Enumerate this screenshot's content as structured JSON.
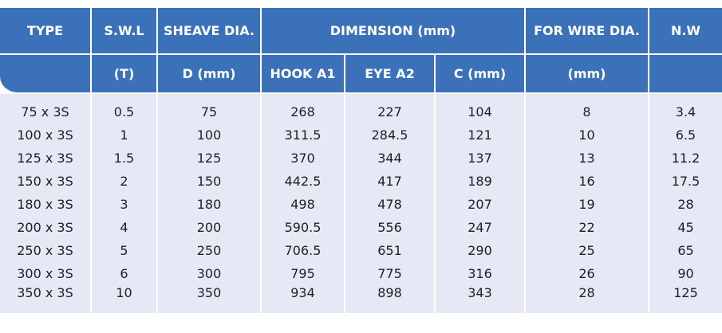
{
  "header": {
    "type": "TYPE",
    "swl": "S.W.L",
    "swl_unit": "(T)",
    "sheave": "SHEAVE DIA.",
    "sheave_unit": "D (mm)",
    "dimension": "DIMENSION (mm)",
    "hook": "HOOK A1",
    "eye": "EYE A2",
    "c": "C (mm)",
    "wire": "FOR WIRE DIA.",
    "wire_unit": "(mm)",
    "nw": "N.W"
  },
  "rows": [
    {
      "type": "75 x 3S",
      "swl": "0.5",
      "sheave": "75",
      "hook": "268",
      "eye": "227",
      "c": "104",
      "wire": "8",
      "nw": "3.4"
    },
    {
      "type": "100 x 3S",
      "swl": "1",
      "sheave": "100",
      "hook": "311.5",
      "eye": "284.5",
      "c": "121",
      "wire": "10",
      "nw": "6.5"
    },
    {
      "type": "125 x 3S",
      "swl": "1.5",
      "sheave": "125",
      "hook": "370",
      "eye": "344",
      "c": "137",
      "wire": "13",
      "nw": "11.2"
    },
    {
      "type": "150 x 3S",
      "swl": "2",
      "sheave": "150",
      "hook": "442.5",
      "eye": "417",
      "c": "189",
      "wire": "16",
      "nw": "17.5"
    },
    {
      "type": "180 x 3S",
      "swl": "3",
      "sheave": "180",
      "hook": "498",
      "eye": "478",
      "c": "207",
      "wire": "19",
      "nw": "28"
    },
    {
      "type": "200 x 3S",
      "swl": "4",
      "sheave": "200",
      "hook": "590.5",
      "eye": "556",
      "c": "247",
      "wire": "22",
      "nw": "45"
    },
    {
      "type": "250 x 3S",
      "swl": "5",
      "sheave": "250",
      "hook": "706.5",
      "eye": "651",
      "c": "290",
      "wire": "25",
      "nw": "65"
    },
    {
      "type": "300 x 3S",
      "swl": "6",
      "sheave": "300",
      "hook": "795",
      "eye": "775",
      "c": "316",
      "wire": "26",
      "nw": "90"
    },
    {
      "type": "350 x 3S",
      "swl": "10",
      "sheave": "350",
      "hook": "934",
      "eye": "898",
      "c": "343",
      "wire": "28",
      "nw": "125"
    }
  ],
  "colors": {
    "header_bg": "#3b71b9",
    "body_bg": "#e4e9f5",
    "text": "#1f1f1f"
  }
}
